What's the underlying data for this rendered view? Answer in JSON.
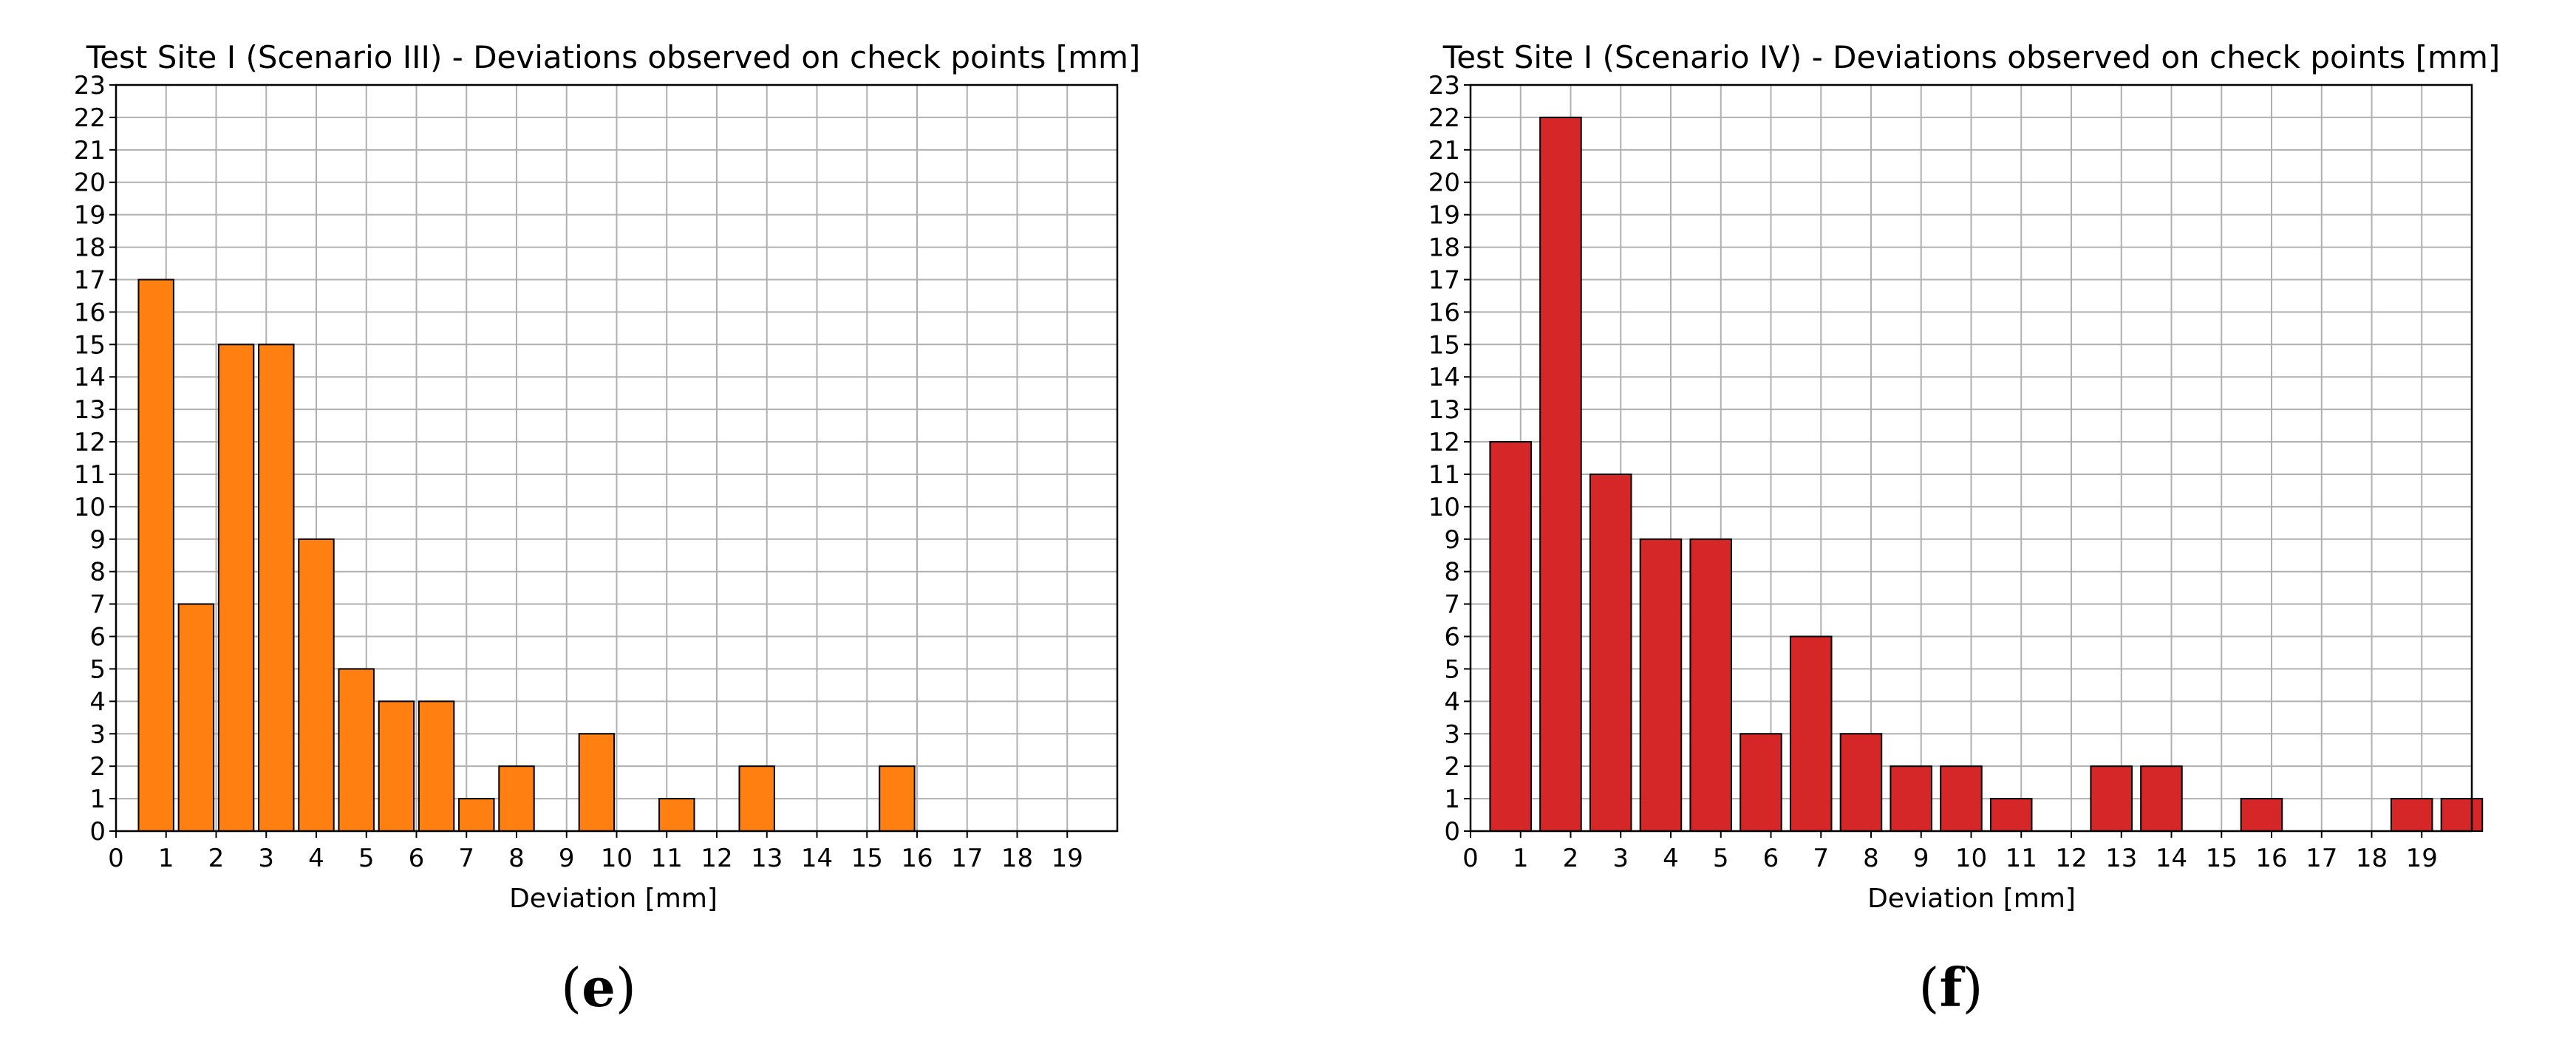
{
  "chart_data": [
    {
      "type": "bar",
      "title": "Test Site I (Scenario III) - Deviations observed on check points [mm]",
      "xlabel": "Deviation [mm]",
      "ylabel": "",
      "xlim": [
        0,
        20
      ],
      "ylim": [
        0,
        23
      ],
      "x_ticks": [
        "0",
        "1",
        "2",
        "3",
        "4",
        "5",
        "6",
        "7",
        "8",
        "9",
        "10",
        "11",
        "12",
        "13",
        "14",
        "15",
        "16",
        "17",
        "18",
        "19"
      ],
      "y_ticks": [
        "0",
        "1",
        "2",
        "3",
        "4",
        "5",
        "6",
        "7",
        "8",
        "9",
        "10",
        "11",
        "12",
        "13",
        "14",
        "15",
        "16",
        "17",
        "18",
        "19",
        "20",
        "21",
        "22",
        "23"
      ],
      "grid": true,
      "bar_width": 0.7,
      "x": [
        0.8,
        1.6,
        2.4,
        3.2,
        4.0,
        4.8,
        5.6,
        6.4,
        7.2,
        8.0,
        9.6,
        11.2,
        12.8,
        15.6
      ],
      "values": [
        17,
        7,
        15,
        15,
        9,
        5,
        4,
        4,
        1,
        2,
        3,
        1,
        2,
        2
      ],
      "color": "#ff8010",
      "panel_label": {
        "open": "(",
        "letter": "e",
        "close": ")"
      }
    },
    {
      "type": "bar",
      "title": "Test Site I (Scenario IV) - Deviations observed on check points [mm]",
      "xlabel": "Deviation [mm]",
      "ylabel": "",
      "xlim": [
        0,
        20
      ],
      "ylim": [
        0,
        23
      ],
      "x_ticks": [
        "0",
        "1",
        "2",
        "3",
        "4",
        "5",
        "6",
        "7",
        "8",
        "9",
        "10",
        "11",
        "12",
        "13",
        "14",
        "15",
        "16",
        "17",
        "18",
        "19"
      ],
      "y_ticks": [
        "0",
        "1",
        "2",
        "3",
        "4",
        "5",
        "6",
        "7",
        "8",
        "9",
        "10",
        "11",
        "12",
        "13",
        "14",
        "15",
        "16",
        "17",
        "18",
        "19",
        "20",
        "21",
        "22",
        "23"
      ],
      "grid": true,
      "bar_width": 0.82,
      "x": [
        0.8,
        1.8,
        2.8,
        3.8,
        4.8,
        5.8,
        6.8,
        7.8,
        8.8,
        9.8,
        10.8,
        12.8,
        13.8,
        15.8,
        18.8,
        19.8
      ],
      "values": [
        12,
        22,
        11,
        9,
        9,
        3,
        6,
        3,
        2,
        2,
        1,
        2,
        2,
        1,
        1,
        1
      ],
      "color": "#d62728",
      "panel_label": {
        "open": "(",
        "letter": "f",
        "close": ")"
      }
    }
  ]
}
